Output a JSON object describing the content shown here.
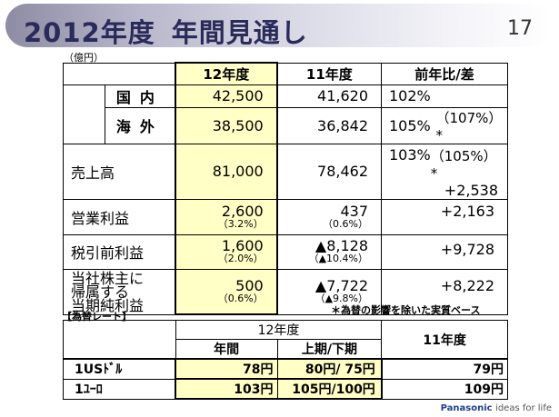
{
  "header": {
    "title_year": "2012年度",
    "title_rest": "年間見通し",
    "page_number": "17"
  },
  "unit": "（億円）",
  "columns": {
    "fy12": "12年度",
    "fy11": "11年度",
    "yoy": "前年比/差"
  },
  "rows": {
    "domestic": {
      "label": "国内",
      "fy12": "42,500",
      "fy11": "41,620",
      "ratio": "102%",
      "extra": ""
    },
    "overseas": {
      "label": "海外",
      "fy12": "38,500",
      "fy11": "36,842",
      "ratio": "105%",
      "extra": "（107%）*"
    },
    "sales": {
      "label": "売上高",
      "fy12": "81,000",
      "fy11": "78,462",
      "ratio": "103%",
      "extra": "（105%）*",
      "diff": "+2,538"
    },
    "op_income": {
      "label": "営業利益",
      "fy12": "2,600",
      "fy12_pct": "（3.2%）",
      "fy11": "437",
      "fy11_pct": "（0.6%）",
      "diff": "+2,163"
    },
    "pretax": {
      "label": "税引前利益",
      "fy12": "1,600",
      "fy12_pct": "（2.0%）",
      "fy11": "▲8,128",
      "fy11_pct": "（▲10.4%）",
      "diff": "+9,728"
    },
    "net": {
      "label_1": "当社株主に",
      "label_2": "帰属する",
      "label_3": "当期純利益",
      "fy12": "500",
      "fy12_pct": "（0.6%）",
      "fy11": "▲7,722",
      "fy11_pct": "（▲9.8%）",
      "diff": "+8,222"
    }
  },
  "note": "＊為替の影響を除いた実質ベース",
  "fx": {
    "label": "【為替レート】",
    "header_fy12": "12年度",
    "header_year": "年間",
    "header_half": "上期/下期",
    "header_fy11": "11年度",
    "rows": [
      {
        "name": "1USﾄﾞﾙ",
        "year": "78円",
        "half": "80円/ 75円",
        "fy11": "79円"
      },
      {
        "name": "1ﾕｰﾛ",
        "year": "103円",
        "half": "105円/100円",
        "fy11": "109円"
      }
    ]
  },
  "logo": {
    "brand": "Panasonic",
    "tagline": "ideas for life"
  }
}
